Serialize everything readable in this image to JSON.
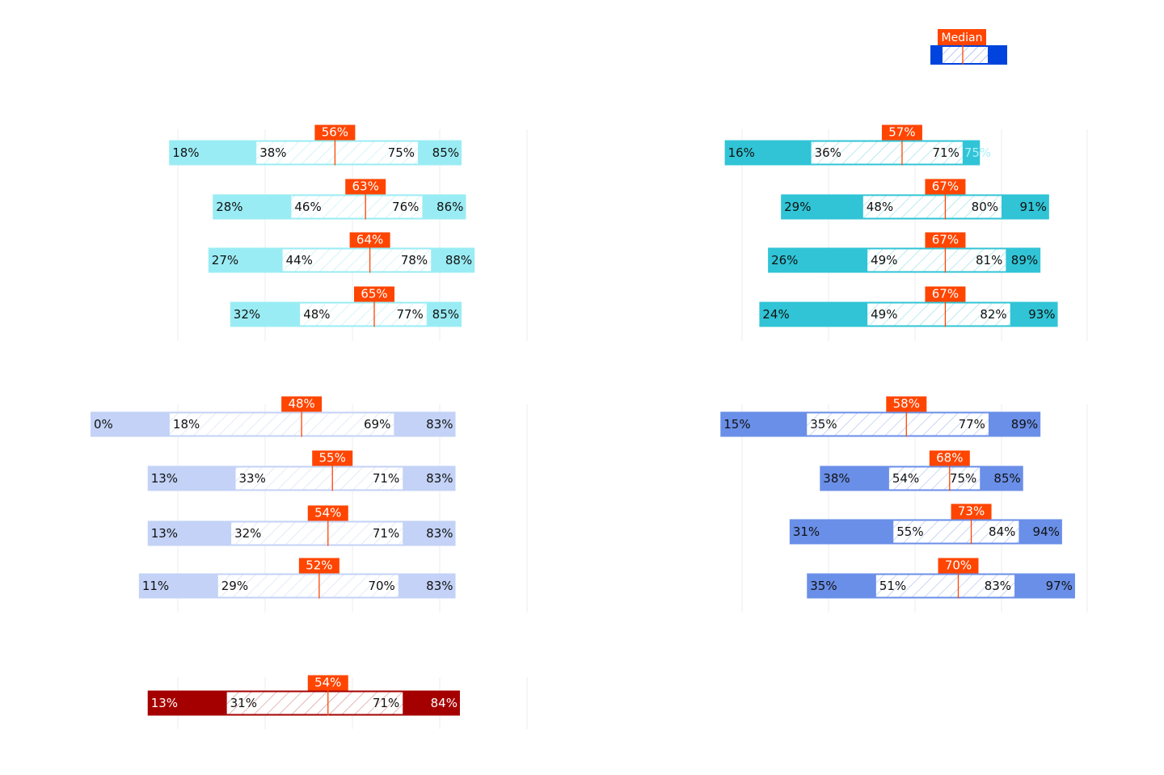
{
  "legend": {
    "median_label": "Median"
  },
  "colors": {
    "median": "#ff4500",
    "median_text": "#ffffff",
    "inner_fill": "#ffffff",
    "panels": [
      "#9aecf4",
      "#30c4d6",
      "#c3d2f6",
      "#6a8fe8",
      "#a50000"
    ],
    "legend_bar": "#0044dd"
  },
  "chart_data": [
    {
      "type": "box",
      "panel": "top-left",
      "rows": [
        {
          "min": 18,
          "p25": 38,
          "median": 56,
          "p75": 75,
          "max": 85,
          "min_label": "18%",
          "p25_label": "38%",
          "median_label": "56%",
          "p75_label": "75%",
          "max_label": "85%"
        },
        {
          "min": 28,
          "p25": 46,
          "median": 63,
          "p75": 76,
          "max": 86,
          "min_label": "28%",
          "p25_label": "46%",
          "median_label": "63%",
          "p75_label": "76%",
          "max_label": "86%"
        },
        {
          "min": 27,
          "p25": 44,
          "median": 64,
          "p75": 78,
          "max": 88,
          "min_label": "27%",
          "p25_label": "44%",
          "median_label": "64%",
          "p75_label": "78%",
          "max_label": "88%"
        },
        {
          "min": 32,
          "p25": 48,
          "median": 65,
          "p75": 77,
          "max": 85,
          "min_label": "32%",
          "p25_label": "48%",
          "median_label": "65%",
          "p75_label": "77%",
          "max_label": "85%"
        }
      ]
    },
    {
      "type": "box",
      "panel": "top-right",
      "rows": [
        {
          "min": 16,
          "p25": 36,
          "median": 57,
          "p75": 71,
          "max": 75,
          "min_label": "16%",
          "p25_label": "36%",
          "median_label": "57%",
          "p75_label": "71%",
          "max_label": "75%"
        },
        {
          "min": 29,
          "p25": 48,
          "median": 67,
          "p75": 80,
          "max": 91,
          "min_label": "29%",
          "p25_label": "48%",
          "median_label": "67%",
          "p75_label": "80%",
          "max_label": "91%"
        },
        {
          "min": 26,
          "p25": 49,
          "median": 67,
          "p75": 81,
          "max": 89,
          "min_label": "26%",
          "p25_label": "49%",
          "median_label": "67%",
          "p75_label": "81%",
          "max_label": "89%"
        },
        {
          "min": 24,
          "p25": 49,
          "median": 67,
          "p75": 82,
          "max": 93,
          "min_label": "24%",
          "p25_label": "49%",
          "median_label": "67%",
          "p75_label": "82%",
          "max_label": "93%"
        }
      ]
    },
    {
      "type": "box",
      "panel": "middle-left",
      "rows": [
        {
          "min": 0,
          "p25": 18,
          "median": 48,
          "p75": 69,
          "max": 83,
          "min_label": "0%",
          "p25_label": "18%",
          "median_label": "48%",
          "p75_label": "69%",
          "max_label": "83%"
        },
        {
          "min": 13,
          "p25": 33,
          "median": 55,
          "p75": 71,
          "max": 83,
          "min_label": "13%",
          "p25_label": "33%",
          "median_label": "55%",
          "p75_label": "71%",
          "max_label": "83%"
        },
        {
          "min": 13,
          "p25": 32,
          "median": 54,
          "p75": 71,
          "max": 83,
          "min_label": "13%",
          "p25_label": "32%",
          "median_label": "54%",
          "p75_label": "71%",
          "max_label": "83%"
        },
        {
          "min": 11,
          "p25": 29,
          "median": 52,
          "p75": 70,
          "max": 83,
          "min_label": "11%",
          "p25_label": "29%",
          "median_label": "52%",
          "p75_label": "70%",
          "max_label": "83%"
        }
      ]
    },
    {
      "type": "box",
      "panel": "middle-right",
      "rows": [
        {
          "min": 15,
          "p25": 35,
          "median": 58,
          "p75": 77,
          "max": 89,
          "min_label": "15%",
          "p25_label": "35%",
          "median_label": "58%",
          "p75_label": "77%",
          "max_label": "89%"
        },
        {
          "min": 38,
          "p25": 54,
          "median": 68,
          "p75": 75,
          "max": 85,
          "min_label": "38%",
          "p25_label": "54%",
          "median_label": "68%",
          "p75_label": "75%",
          "max_label": "85%"
        },
        {
          "min": 31,
          "p25": 55,
          "median": 73,
          "p75": 84,
          "max": 94,
          "min_label": "31%",
          "p25_label": "55%",
          "median_label": "73%",
          "p75_label": "84%",
          "max_label": "94%"
        },
        {
          "min": 35,
          "p25": 51,
          "median": 70,
          "p75": 83,
          "max": 97,
          "min_label": "35%",
          "p25_label": "51%",
          "median_label": "70%",
          "p75_label": "83%",
          "max_label": "97%"
        }
      ]
    },
    {
      "type": "box",
      "panel": "bottom-left",
      "rows": [
        {
          "min": 13,
          "p25": 31,
          "median": 54,
          "p75": 71,
          "max": 84,
          "min_label": "13%",
          "p25_label": "31%",
          "median_label": "54%",
          "p75_label": "71%",
          "max_label": "84%"
        }
      ]
    }
  ]
}
